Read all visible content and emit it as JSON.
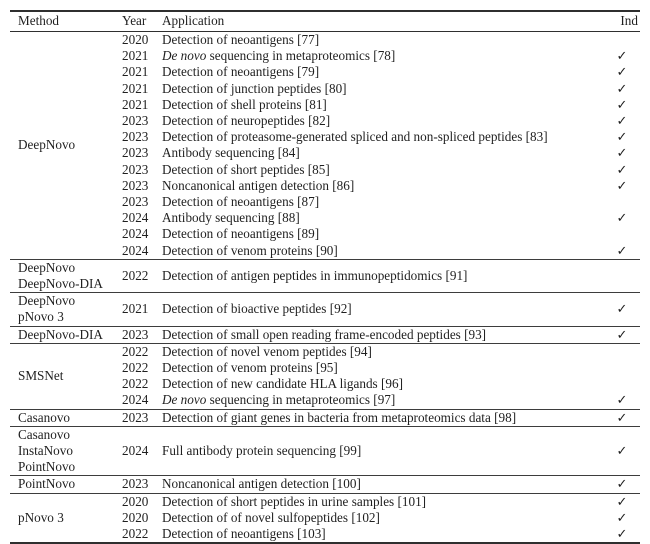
{
  "colors": {
    "background": "#ffffff",
    "text": "#1f1f1f",
    "rule_heavy": "#2f2f2f",
    "rule_light": "#3d3d3d"
  },
  "table": {
    "headers": {
      "method": "Method",
      "year": "Year",
      "application": "Application",
      "ind": "Ind"
    },
    "check_symbol": "✓",
    "groups": [
      {
        "method": [
          "DeepNovo"
        ],
        "rows": [
          {
            "year": "2020",
            "italic": "",
            "app": "Detection of neoantigens [77]",
            "ind": false
          },
          {
            "year": "2021",
            "italic": "De novo",
            "app": " sequencing in metaproteomics [78]",
            "ind": true
          },
          {
            "year": "2021",
            "italic": "",
            "app": "Detection of neoantigens [79]",
            "ind": true
          },
          {
            "year": "2021",
            "italic": "",
            "app": "Detection of junction peptides [80]",
            "ind": true
          },
          {
            "year": "2021",
            "italic": "",
            "app": "Detection of shell proteins [81]",
            "ind": true
          },
          {
            "year": "2023",
            "italic": "",
            "app": "Detection of neuropeptides [82]",
            "ind": true
          },
          {
            "year": "2023",
            "italic": "",
            "app": "Detection of proteasome-generated spliced and non-spliced peptides [83]",
            "ind": true
          },
          {
            "year": "2023",
            "italic": "",
            "app": "Antibody sequencing [84]",
            "ind": true
          },
          {
            "year": "2023",
            "italic": "",
            "app": "Detection of short peptides [85]",
            "ind": true
          },
          {
            "year": "2023",
            "italic": "",
            "app": "Noncanonical antigen detection [86]",
            "ind": true
          },
          {
            "year": "2023",
            "italic": "",
            "app": "Detection of neoantigens [87]",
            "ind": false
          },
          {
            "year": "2024",
            "italic": "",
            "app": "Antibody sequencing [88]",
            "ind": true
          },
          {
            "year": "2024",
            "italic": "",
            "app": "Detection of neoantigens [89]",
            "ind": false
          },
          {
            "year": "2024",
            "italic": "",
            "app": "Detection of venom proteins [90]",
            "ind": true
          }
        ]
      },
      {
        "method": [
          "DeepNovo",
          "DeepNovo-DIA"
        ],
        "rows": [
          {
            "year": "2022",
            "italic": "",
            "app": "Detection of antigen peptides in immunopeptidomics [91]",
            "ind": false
          }
        ]
      },
      {
        "method": [
          "DeepNovo",
          "pNovo 3"
        ],
        "rows": [
          {
            "year": "2021",
            "italic": "",
            "app": "Detection of bioactive peptides [92]",
            "ind": true
          }
        ]
      },
      {
        "method": [
          "DeepNovo-DIA"
        ],
        "rows": [
          {
            "year": "2023",
            "italic": "",
            "app": "Detection of small open reading frame-encoded peptides [93]",
            "ind": true
          }
        ]
      },
      {
        "method": [
          "SMSNet"
        ],
        "rows": [
          {
            "year": "2022",
            "italic": "",
            "app": "Detection of novel venom peptides [94]",
            "ind": false
          },
          {
            "year": "2022",
            "italic": "",
            "app": "Detection of venom proteins [95]",
            "ind": false
          },
          {
            "year": "2022",
            "italic": "",
            "app": "Detection of new candidate HLA ligands [96]",
            "ind": false
          },
          {
            "year": "2024",
            "italic": "De novo",
            "app": " sequencing in metaproteomics [97]",
            "ind": true
          }
        ]
      },
      {
        "method": [
          "Casanovo"
        ],
        "rows": [
          {
            "year": "2023",
            "italic": "",
            "app": "Detection of giant genes in bacteria from metaproteomics data [98]",
            "ind": true
          }
        ]
      },
      {
        "method": [
          "Casanovo",
          "InstaNovo",
          "PointNovo"
        ],
        "rows": [
          {
            "year": "2024",
            "italic": "",
            "app": "Full antibody protein sequencing [99]",
            "ind": true
          }
        ]
      },
      {
        "method": [
          "PointNovo"
        ],
        "rows": [
          {
            "year": "2023",
            "italic": "",
            "app": "Noncanonical antigen detection [100]",
            "ind": true
          }
        ]
      },
      {
        "method": [
          "pNovo 3"
        ],
        "rows": [
          {
            "year": "2020",
            "italic": "",
            "app": "Detection of short peptides in urine samples [101]",
            "ind": true
          },
          {
            "year": "2020",
            "italic": "",
            "app": "Detection of of novel sulfopeptides [102]",
            "ind": true
          },
          {
            "year": "2022",
            "italic": "",
            "app": "Detection of neoantigens [103]",
            "ind": true
          }
        ]
      }
    ]
  }
}
